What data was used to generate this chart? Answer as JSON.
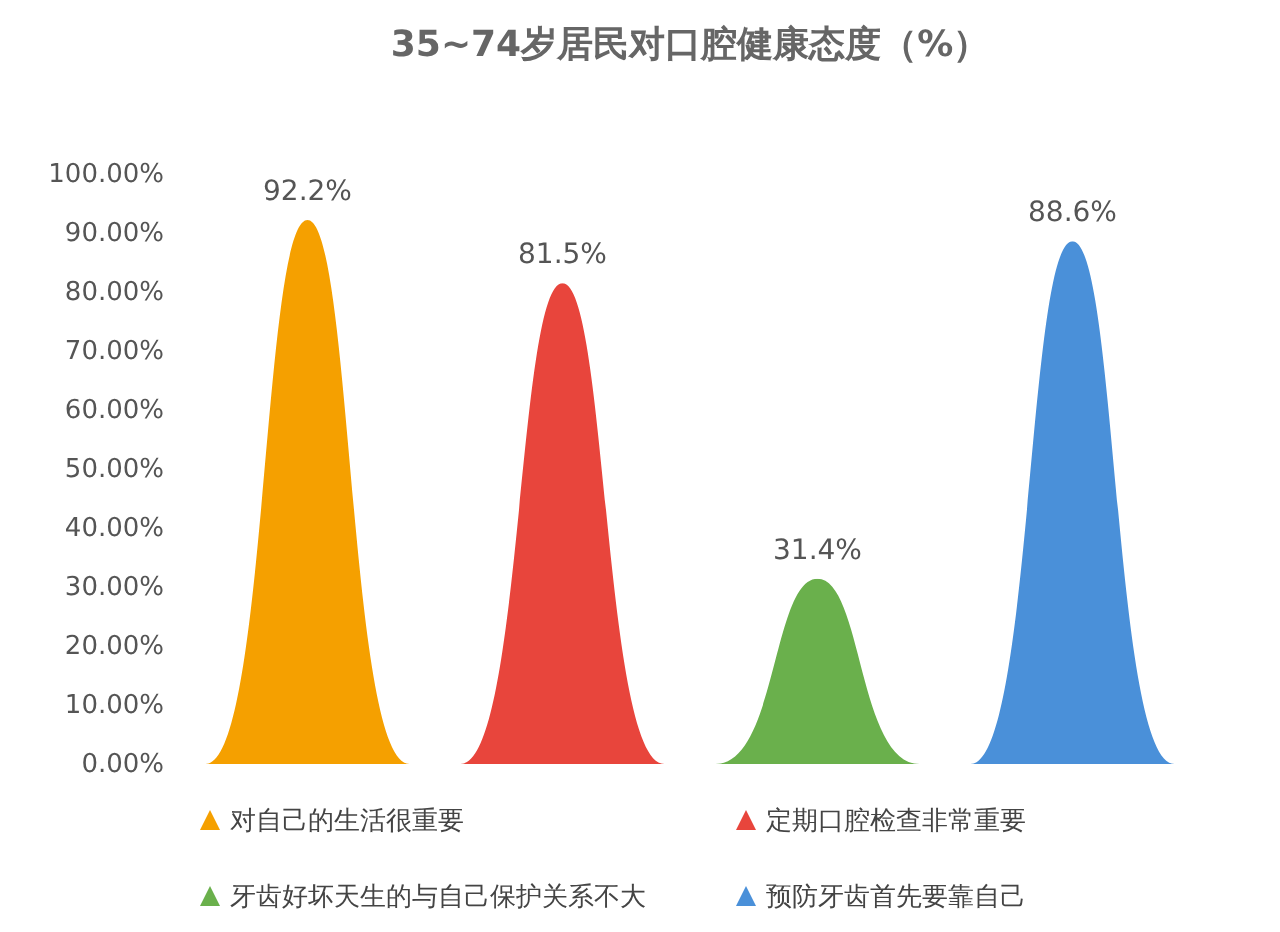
{
  "chart_data": {
    "type": "bar",
    "title": "35~74岁居民对口腔健康态度（%）",
    "categories": [
      null,
      null,
      null,
      null
    ],
    "series": [
      {
        "name": "对自己的生活很重要",
        "color": "#f5a000",
        "values": [
          92.2,
          null,
          null,
          null
        ],
        "value_labels": [
          "92.2%",
          null,
          null,
          null
        ]
      },
      {
        "name": "定期口腔检查非常重要",
        "color": "#e8453c",
        "values": [
          null,
          81.5,
          null,
          null
        ],
        "value_labels": [
          null,
          "81.5%",
          null,
          null
        ]
      },
      {
        "name": "牙齿好坏天生的与自己保护关系不大",
        "color": "#6ab04c",
        "values": [
          null,
          null,
          31.4,
          null
        ],
        "value_labels": [
          null,
          null,
          "31.4%",
          null
        ]
      },
      {
        "name": "预防牙齿首先要靠自己",
        "color": "#4a90d9",
        "values": [
          null,
          null,
          null,
          88.6
        ],
        "value_labels": [
          null,
          null,
          null,
          "88.6%"
        ]
      }
    ],
    "ylim": [
      0,
      100
    ],
    "yticks": [
      {
        "value": 0,
        "label": "0.00%"
      },
      {
        "value": 10,
        "label": "10.00%"
      },
      {
        "value": 20,
        "label": "20.00%"
      },
      {
        "value": 30,
        "label": "30.00%"
      },
      {
        "value": 40,
        "label": "40.00%"
      },
      {
        "value": 50,
        "label": "50.00%"
      },
      {
        "value": 60,
        "label": "60.00%"
      },
      {
        "value": 70,
        "label": "70.00%"
      },
      {
        "value": 80,
        "label": "80.00%"
      },
      {
        "value": 90,
        "label": "90.00%"
      },
      {
        "value": 100,
        "label": "100.00%"
      }
    ],
    "stacked": true,
    "grid": false,
    "legend": "bottom"
  }
}
